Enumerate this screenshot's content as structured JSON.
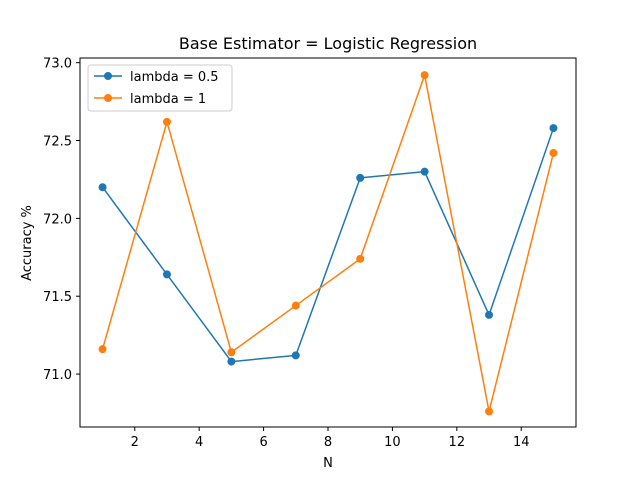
{
  "chart_data": {
    "type": "line",
    "title": "Base Estimator = Logistic Regression",
    "xlabel": "N",
    "ylabel": "Accuracy %",
    "x": [
      1,
      3,
      5,
      7,
      9,
      11,
      13,
      15
    ],
    "xlim": [
      0.3,
      15.7
    ],
    "ylim": [
      70.66,
      73.03
    ],
    "xticks": [
      2,
      4,
      6,
      8,
      10,
      12,
      14
    ],
    "yticks": [
      71.0,
      71.5,
      72.0,
      72.5,
      73.0
    ],
    "ytick_labels": [
      "71.0",
      "71.5",
      "72.0",
      "72.5",
      "73.0"
    ],
    "grid": false,
    "legend_position": "upper-left",
    "series": [
      {
        "name": "lambda = 0.5",
        "color": "#1f77b4",
        "values": [
          72.2,
          71.64,
          71.08,
          71.12,
          72.26,
          72.3,
          71.38,
          72.58
        ]
      },
      {
        "name": "lambda = 1",
        "color": "#ff7f0e",
        "values": [
          71.16,
          72.62,
          71.14,
          71.44,
          71.74,
          72.92,
          70.76,
          72.42
        ]
      }
    ]
  }
}
